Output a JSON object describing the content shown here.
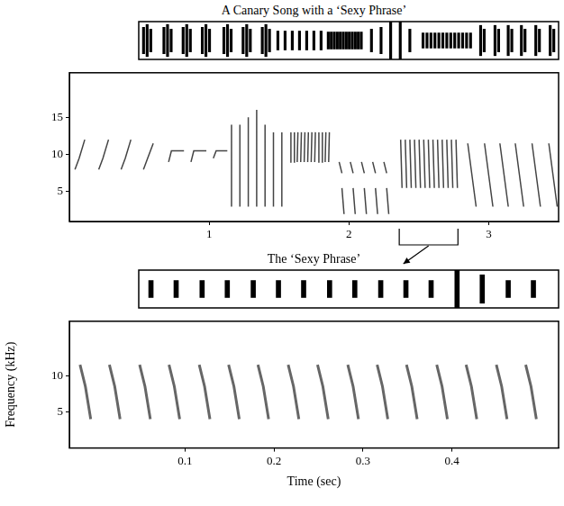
{
  "chart_data": [
    {
      "type": "bar",
      "title": "A Canary Song with a ‘Sexy Phrase’",
      "tick_labels": false,
      "grid": false,
      "color": "#000000",
      "xlim": [
        0,
        3.5
      ],
      "ylim": [
        -1,
        1
      ],
      "x": [
        0.04,
        0.07,
        0.1,
        0.21,
        0.24,
        0.27,
        0.37,
        0.4,
        0.43,
        0.53,
        0.56,
        0.59,
        0.71,
        0.74,
        0.77,
        0.87,
        0.9,
        0.93,
        1.03,
        1.06,
        1.09,
        1.16,
        1.22,
        1.28,
        1.34,
        1.4,
        1.46,
        1.52,
        1.58,
        1.605,
        1.63,
        1.655,
        1.68,
        1.705,
        1.73,
        1.755,
        1.78,
        1.805,
        1.83,
        1.855,
        1.94,
        2.02,
        2.1,
        2.18,
        2.26,
        2.37,
        2.403,
        2.436,
        2.469,
        2.502,
        2.535,
        2.568,
        2.601,
        2.634,
        2.667,
        2.7,
        2.733,
        2.766,
        2.85,
        2.88,
        2.97,
        3.0,
        3.08,
        3.11,
        3.19,
        3.22,
        3.31,
        3.34,
        3.43,
        3.46
      ],
      "values": [
        0.7,
        0.85,
        0.6,
        0.7,
        0.85,
        0.6,
        0.7,
        0.85,
        0.6,
        0.7,
        0.85,
        0.6,
        0.7,
        0.85,
        0.6,
        0.7,
        0.85,
        0.6,
        0.7,
        0.85,
        0.6,
        0.5,
        0.5,
        0.5,
        0.5,
        0.5,
        0.5,
        0.5,
        0.45,
        0.45,
        0.45,
        0.45,
        0.45,
        0.45,
        0.45,
        0.45,
        0.45,
        0.45,
        0.45,
        0.45,
        0.6,
        0.7,
        1.0,
        1.0,
        0.6,
        0.4,
        0.4,
        0.4,
        0.4,
        0.4,
        0.4,
        0.4,
        0.4,
        0.4,
        0.4,
        0.4,
        0.4,
        0.4,
        0.8,
        0.6,
        0.8,
        0.6,
        0.8,
        0.6,
        0.8,
        0.6,
        0.8,
        0.6,
        0.8,
        0.6
      ]
    },
    {
      "type": "line",
      "grid": false,
      "color": "#444444",
      "xlim": [
        0,
        3.5
      ],
      "xticks": [
        1,
        2,
        3
      ],
      "ylim": [
        1,
        21
      ],
      "yticks": [
        5,
        10,
        15
      ],
      "bracket": [
        2.36,
        2.78
      ],
      "x": [
        0.04,
        0.07,
        0.11,
        0.11,
        0.21,
        0.24,
        0.28,
        0.28,
        0.37,
        0.4,
        0.44,
        0.44,
        0.53,
        0.56,
        0.6,
        0.6,
        0.71,
        0.73,
        0.82,
        0.82,
        0.87,
        0.89,
        0.98,
        0.98,
        1.03,
        1.05,
        1.13,
        1.13,
        1.16,
        1.16,
        1.16,
        1.22,
        1.22,
        1.22,
        1.28,
        1.28,
        1.28,
        1.34,
        1.34,
        1.34,
        1.4,
        1.4,
        1.4,
        1.46,
        1.46,
        1.46,
        1.52,
        1.52,
        1.52,
        1.58,
        1.585,
        1.585,
        1.605,
        1.61,
        1.61,
        1.63,
        1.635,
        1.635,
        1.655,
        1.66,
        1.66,
        1.68,
        1.685,
        1.685,
        1.705,
        1.71,
        1.71,
        1.73,
        1.735,
        1.735,
        1.755,
        1.76,
        1.76,
        1.78,
        1.785,
        1.785,
        1.805,
        1.81,
        1.81,
        1.83,
        1.835,
        1.835,
        1.855,
        1.86,
        1.86,
        1.93,
        1.95,
        1.95,
        1.95,
        1.965,
        1.965,
        2.01,
        2.03,
        2.03,
        2.03,
        2.045,
        2.045,
        2.09,
        2.11,
        2.11,
        2.11,
        2.125,
        2.125,
        2.17,
        2.19,
        2.19,
        2.19,
        2.205,
        2.205,
        2.25,
        2.27,
        2.27,
        2.27,
        2.285,
        2.285,
        2.37,
        2.38,
        2.38,
        2.403,
        2.413,
        2.413,
        2.436,
        2.446,
        2.446,
        2.469,
        2.479,
        2.479,
        2.502,
        2.512,
        2.512,
        2.535,
        2.545,
        2.545,
        2.568,
        2.578,
        2.578,
        2.601,
        2.611,
        2.611,
        2.634,
        2.644,
        2.644,
        2.667,
        2.677,
        2.677,
        2.7,
        2.71,
        2.71,
        2.733,
        2.743,
        2.743,
        2.766,
        2.776,
        2.776,
        2.85,
        2.91,
        2.91,
        2.97,
        3.03,
        3.03,
        3.08,
        3.14,
        3.14,
        3.19,
        3.25,
        3.25,
        3.31,
        3.37,
        3.37,
        3.43,
        3.49,
        3.49
      ],
      "values": [
        8,
        9.5,
        12,
        null,
        8,
        9.5,
        12,
        null,
        8,
        9.5,
        12,
        null,
        8,
        9.5,
        11.5,
        null,
        9,
        10.5,
        10.5,
        null,
        9,
        10.5,
        10.5,
        null,
        9.5,
        10.5,
        10.5,
        null,
        3,
        14,
        null,
        3,
        14,
        null,
        3,
        15,
        null,
        3,
        16,
        null,
        3,
        14,
        null,
        3,
        13,
        null,
        3,
        13,
        null,
        9,
        13,
        null,
        9,
        13,
        null,
        9,
        13,
        null,
        9,
        13,
        null,
        9,
        13,
        null,
        9,
        13,
        null,
        9,
        13,
        null,
        9,
        13,
        null,
        9,
        13,
        null,
        9,
        13,
        null,
        9,
        13,
        null,
        9,
        13,
        null,
        9,
        7.5,
        null,
        5.5,
        2,
        null,
        9,
        7.5,
        null,
        5.5,
        2,
        null,
        9,
        7.5,
        null,
        5.5,
        2,
        null,
        9,
        7.5,
        null,
        5.5,
        2,
        null,
        9,
        7.5,
        null,
        5.5,
        2,
        null,
        12,
        5.5,
        null,
        12,
        5.5,
        null,
        12,
        5.5,
        null,
        12,
        5.5,
        null,
        12,
        5.5,
        null,
        12,
        5.5,
        null,
        12,
        5.5,
        null,
        12,
        5.5,
        null,
        12,
        5.5,
        null,
        12,
        5.5,
        null,
        12,
        5.5,
        null,
        12,
        5.5,
        null,
        12,
        5.5,
        null,
        11.5,
        3,
        null,
        11.5,
        3,
        null,
        11.5,
        3,
        null,
        11.5,
        3,
        null,
        11.5,
        3,
        null,
        11.5,
        3,
        null
      ]
    },
    {
      "type": "bar",
      "title": "The ‘Sexy Phrase’",
      "tick_labels": false,
      "grid": false,
      "color": "#000000",
      "xlim": [
        -0.03,
        0.52
      ],
      "ylim": [
        -1,
        1
      ],
      "x": [
        -0.014,
        0.019,
        0.053,
        0.086,
        0.12,
        0.153,
        0.186,
        0.22,
        0.253,
        0.287,
        0.32,
        0.353,
        0.387,
        0.42,
        0.454,
        0.487
      ],
      "values": [
        0.45,
        0.45,
        0.45,
        0.45,
        0.45,
        0.45,
        0.45,
        0.45,
        0.45,
        0.45,
        0.45,
        0.45,
        1.0,
        0.75,
        0.45,
        0.45
      ]
    },
    {
      "type": "line",
      "grid": false,
      "color": "#666666",
      "x_label": "Time (sec)",
      "y_label": "Frequency (kHz)",
      "xlim": [
        -0.03,
        0.52
      ],
      "xticks": [
        0.1,
        0.2,
        0.3,
        0.4
      ],
      "ylim": [
        0,
        17.5
      ],
      "yticks": [
        5,
        10
      ],
      "x": [
        -0.018,
        -0.012,
        -0.006,
        -0.006,
        0.015,
        0.021,
        0.027,
        0.027,
        0.049,
        0.055,
        0.061,
        0.061,
        0.082,
        0.088,
        0.094,
        0.094,
        0.116,
        0.122,
        0.128,
        0.128,
        0.149,
        0.155,
        0.161,
        0.161,
        0.182,
        0.188,
        0.194,
        0.194,
        0.216,
        0.222,
        0.228,
        0.228,
        0.249,
        0.255,
        0.261,
        0.261,
        0.283,
        0.289,
        0.295,
        0.295,
        0.316,
        0.322,
        0.328,
        0.328,
        0.349,
        0.355,
        0.361,
        0.361,
        0.383,
        0.389,
        0.395,
        0.395,
        0.416,
        0.422,
        0.428,
        0.428,
        0.45,
        0.456,
        0.462,
        0.462,
        0.483,
        0.489,
        0.495,
        0.495
      ],
      "values": [
        11.5,
        8.5,
        4,
        null,
        11.5,
        8.5,
        4,
        null,
        11.5,
        8.5,
        4,
        null,
        11.5,
        8.5,
        4,
        null,
        11.5,
        8.5,
        4,
        null,
        11.5,
        8.5,
        4,
        null,
        11.5,
        8.5,
        4,
        null,
        11.5,
        8.5,
        4,
        null,
        11.5,
        8.5,
        4,
        null,
        11.5,
        8.5,
        4,
        null,
        11.5,
        8.5,
        4,
        null,
        11.5,
        8.5,
        4,
        null,
        11.5,
        8.5,
        4,
        null,
        11.5,
        8.5,
        4,
        null,
        11.5,
        8.5,
        4,
        null,
        11.5,
        8.5,
        4,
        null
      ]
    }
  ]
}
